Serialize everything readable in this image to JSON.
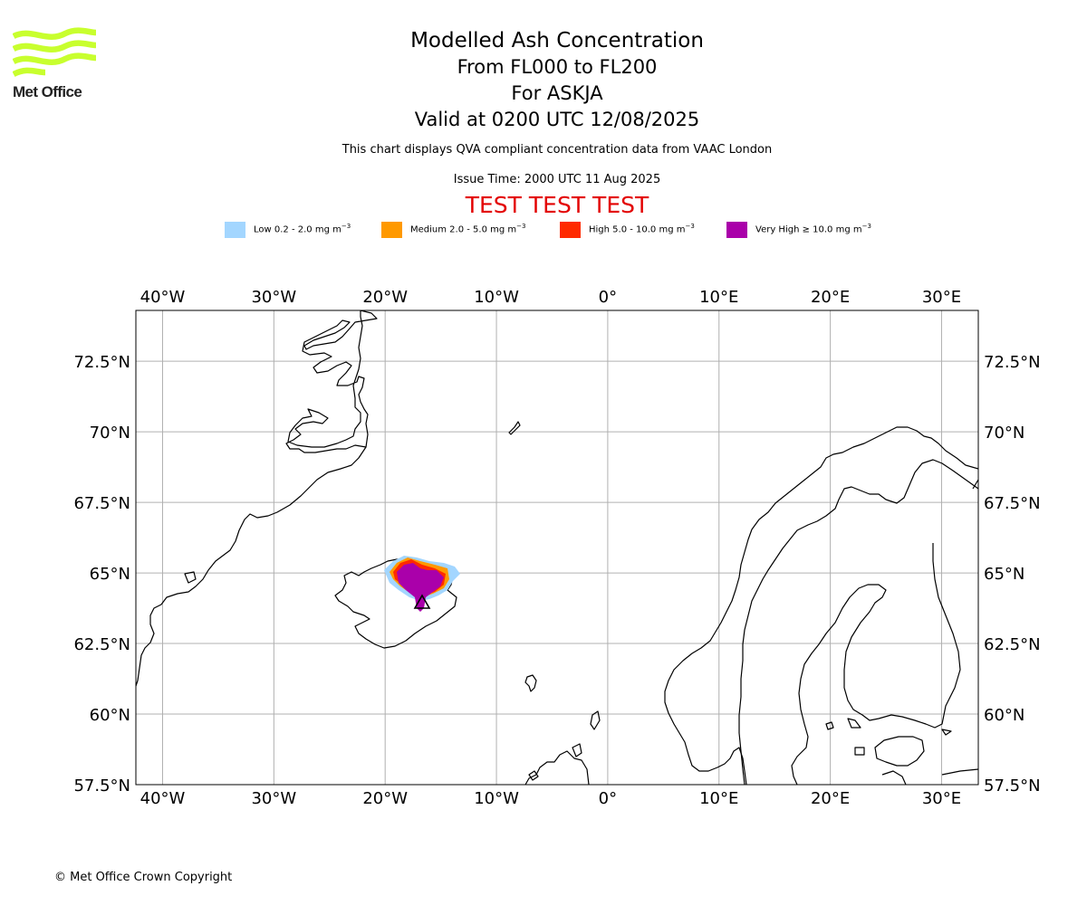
{
  "logo": {
    "text": "Met Office",
    "color": "#c8ff2e"
  },
  "title": {
    "main": "Modelled Ash Concentration",
    "levels": "From FL000 to FL200",
    "volcano": "For ASKJA",
    "valid": "Valid at 0200 UTC 12/08/2025"
  },
  "description": "This chart displays QVA compliant concentration data from VAAC London",
  "issue_time": "Issue Time: 2000 UTC 11 Aug 2025",
  "test_banner": "TEST TEST TEST",
  "legend": [
    {
      "label": "Low 0.2 - 2.0 mg m",
      "color": "#a3d6ff"
    },
    {
      "label": "Medium 2.0 - 5.0 mg m",
      "color": "#ff9900"
    },
    {
      "label": "High 5.0 - 10.0 mg m",
      "color": "#ff2a00"
    },
    {
      "label": "Very High ≥ 10.0 mg m",
      "color": "#aa00aa"
    }
  ],
  "legend_exponent": "−3",
  "map": {
    "projection": "equirectangular",
    "lon_range": [
      -42.4,
      33.3
    ],
    "lat_range": [
      57.5,
      74.3
    ],
    "lon_ticks": [
      "40°W",
      "30°W",
      "20°W",
      "10°W",
      "0°",
      "10°E",
      "20°E",
      "30°E"
    ],
    "lat_ticks": [
      "72.5°N",
      "70°N",
      "67.5°N",
      "65°N",
      "62.5°N",
      "60°N",
      "57.5°N"
    ],
    "grid": true,
    "volcano_marker": "triangle-icon"
  },
  "copyright": "© Met Office Crown Copyright"
}
